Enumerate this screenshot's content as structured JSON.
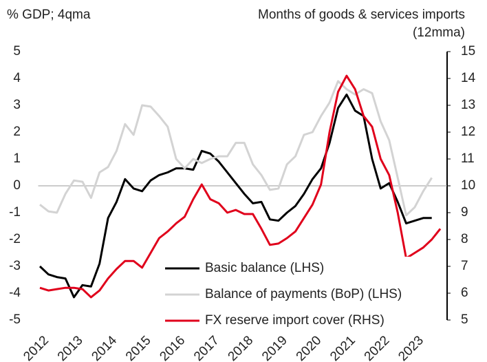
{
  "chart_data": {
    "type": "line",
    "y_label": "% GDP; 4qma",
    "y2_label": [
      "Months of goods & services imports",
      "(12mma)"
    ],
    "x": [
      2012.0,
      2012.25,
      2012.5,
      2012.75,
      2013.0,
      2013.25,
      2013.5,
      2013.75,
      2014.0,
      2014.25,
      2014.5,
      2014.75,
      2015.0,
      2015.25,
      2015.5,
      2015.75,
      2016.0,
      2016.25,
      2016.5,
      2016.75,
      2017.0,
      2017.25,
      2017.5,
      2017.75,
      2018.0,
      2018.25,
      2018.5,
      2018.75,
      2019.0,
      2019.25,
      2019.5,
      2019.75,
      2020.0,
      2020.25,
      2020.5,
      2020.75,
      2021.0,
      2021.25,
      2021.5,
      2021.75,
      2022.0,
      2022.25,
      2022.5,
      2022.75,
      2023.0,
      2023.25,
      2023.5,
      2023.75
    ],
    "xlim": [
      2011.95,
      2023.95
    ],
    "xticks": [
      2012,
      2013,
      2014,
      2015,
      2016,
      2017,
      2018,
      2019,
      2020,
      2021,
      2022,
      2023
    ],
    "ylim": [
      -5,
      5
    ],
    "yticks": [
      -5,
      -4,
      -3,
      -2,
      -1,
      0,
      1,
      2,
      3,
      4,
      5
    ],
    "y2lim": [
      5,
      15
    ],
    "y2ticks": [
      5,
      6,
      7,
      8,
      9,
      10,
      11,
      12,
      13,
      14,
      15
    ],
    "zero_line": true,
    "series": [
      {
        "name": "Basic balance (LHS)",
        "color": "#000000",
        "values": [
          -3.0,
          -3.3,
          -3.4,
          -3.45,
          -4.15,
          -3.7,
          -3.75,
          -2.9,
          -1.2,
          -0.6,
          0.25,
          -0.1,
          -0.2,
          0.2,
          0.4,
          0.5,
          0.65,
          0.65,
          0.6,
          1.3,
          1.2,
          0.9,
          0.5,
          0.1,
          -0.3,
          -0.65,
          -0.6,
          -1.25,
          -1.3,
          -1.0,
          -0.75,
          -0.3,
          0.25,
          0.65,
          1.6,
          2.9,
          3.4,
          2.8,
          2.6,
          1.0,
          -0.1,
          0.1,
          -0.6,
          -1.4,
          -1.3,
          -1.2,
          -1.2,
          null
        ]
      },
      {
        "name": "Balance of payments (BoP) (LHS)",
        "color": "#d3d3d3",
        "values": [
          -0.7,
          -0.95,
          -1.0,
          -0.3,
          0.2,
          0.15,
          -0.45,
          0.5,
          0.7,
          1.3,
          2.3,
          1.9,
          3.0,
          2.95,
          2.6,
          2.2,
          1.0,
          0.65,
          1.0,
          0.85,
          1.0,
          1.1,
          1.1,
          1.6,
          1.6,
          0.8,
          0.4,
          -0.15,
          -0.1,
          0.8,
          1.1,
          1.9,
          2.0,
          2.6,
          3.1,
          3.9,
          3.6,
          3.4,
          3.6,
          3.45,
          2.4,
          1.7,
          0.3,
          -1.1,
          -0.8,
          -0.2,
          0.3,
          null
        ]
      },
      {
        "name": "FX reserve import cover (RHS)",
        "color": "#e0001b",
        "axis": "y2",
        "values": [
          6.2,
          6.1,
          6.15,
          6.2,
          6.2,
          6.15,
          5.85,
          6.1,
          6.55,
          6.9,
          7.2,
          7.2,
          6.95,
          7.5,
          8.05,
          8.3,
          8.6,
          8.85,
          9.5,
          10.05,
          9.5,
          9.35,
          9.0,
          9.1,
          8.95,
          8.95,
          8.4,
          7.8,
          7.85,
          8.05,
          8.3,
          8.8,
          9.3,
          10.05,
          12.0,
          13.5,
          14.1,
          13.6,
          12.6,
          12.2,
          11.0,
          10.4,
          9.0,
          7.3,
          7.5,
          7.7,
          8.0,
          8.4
        ]
      }
    ]
  }
}
